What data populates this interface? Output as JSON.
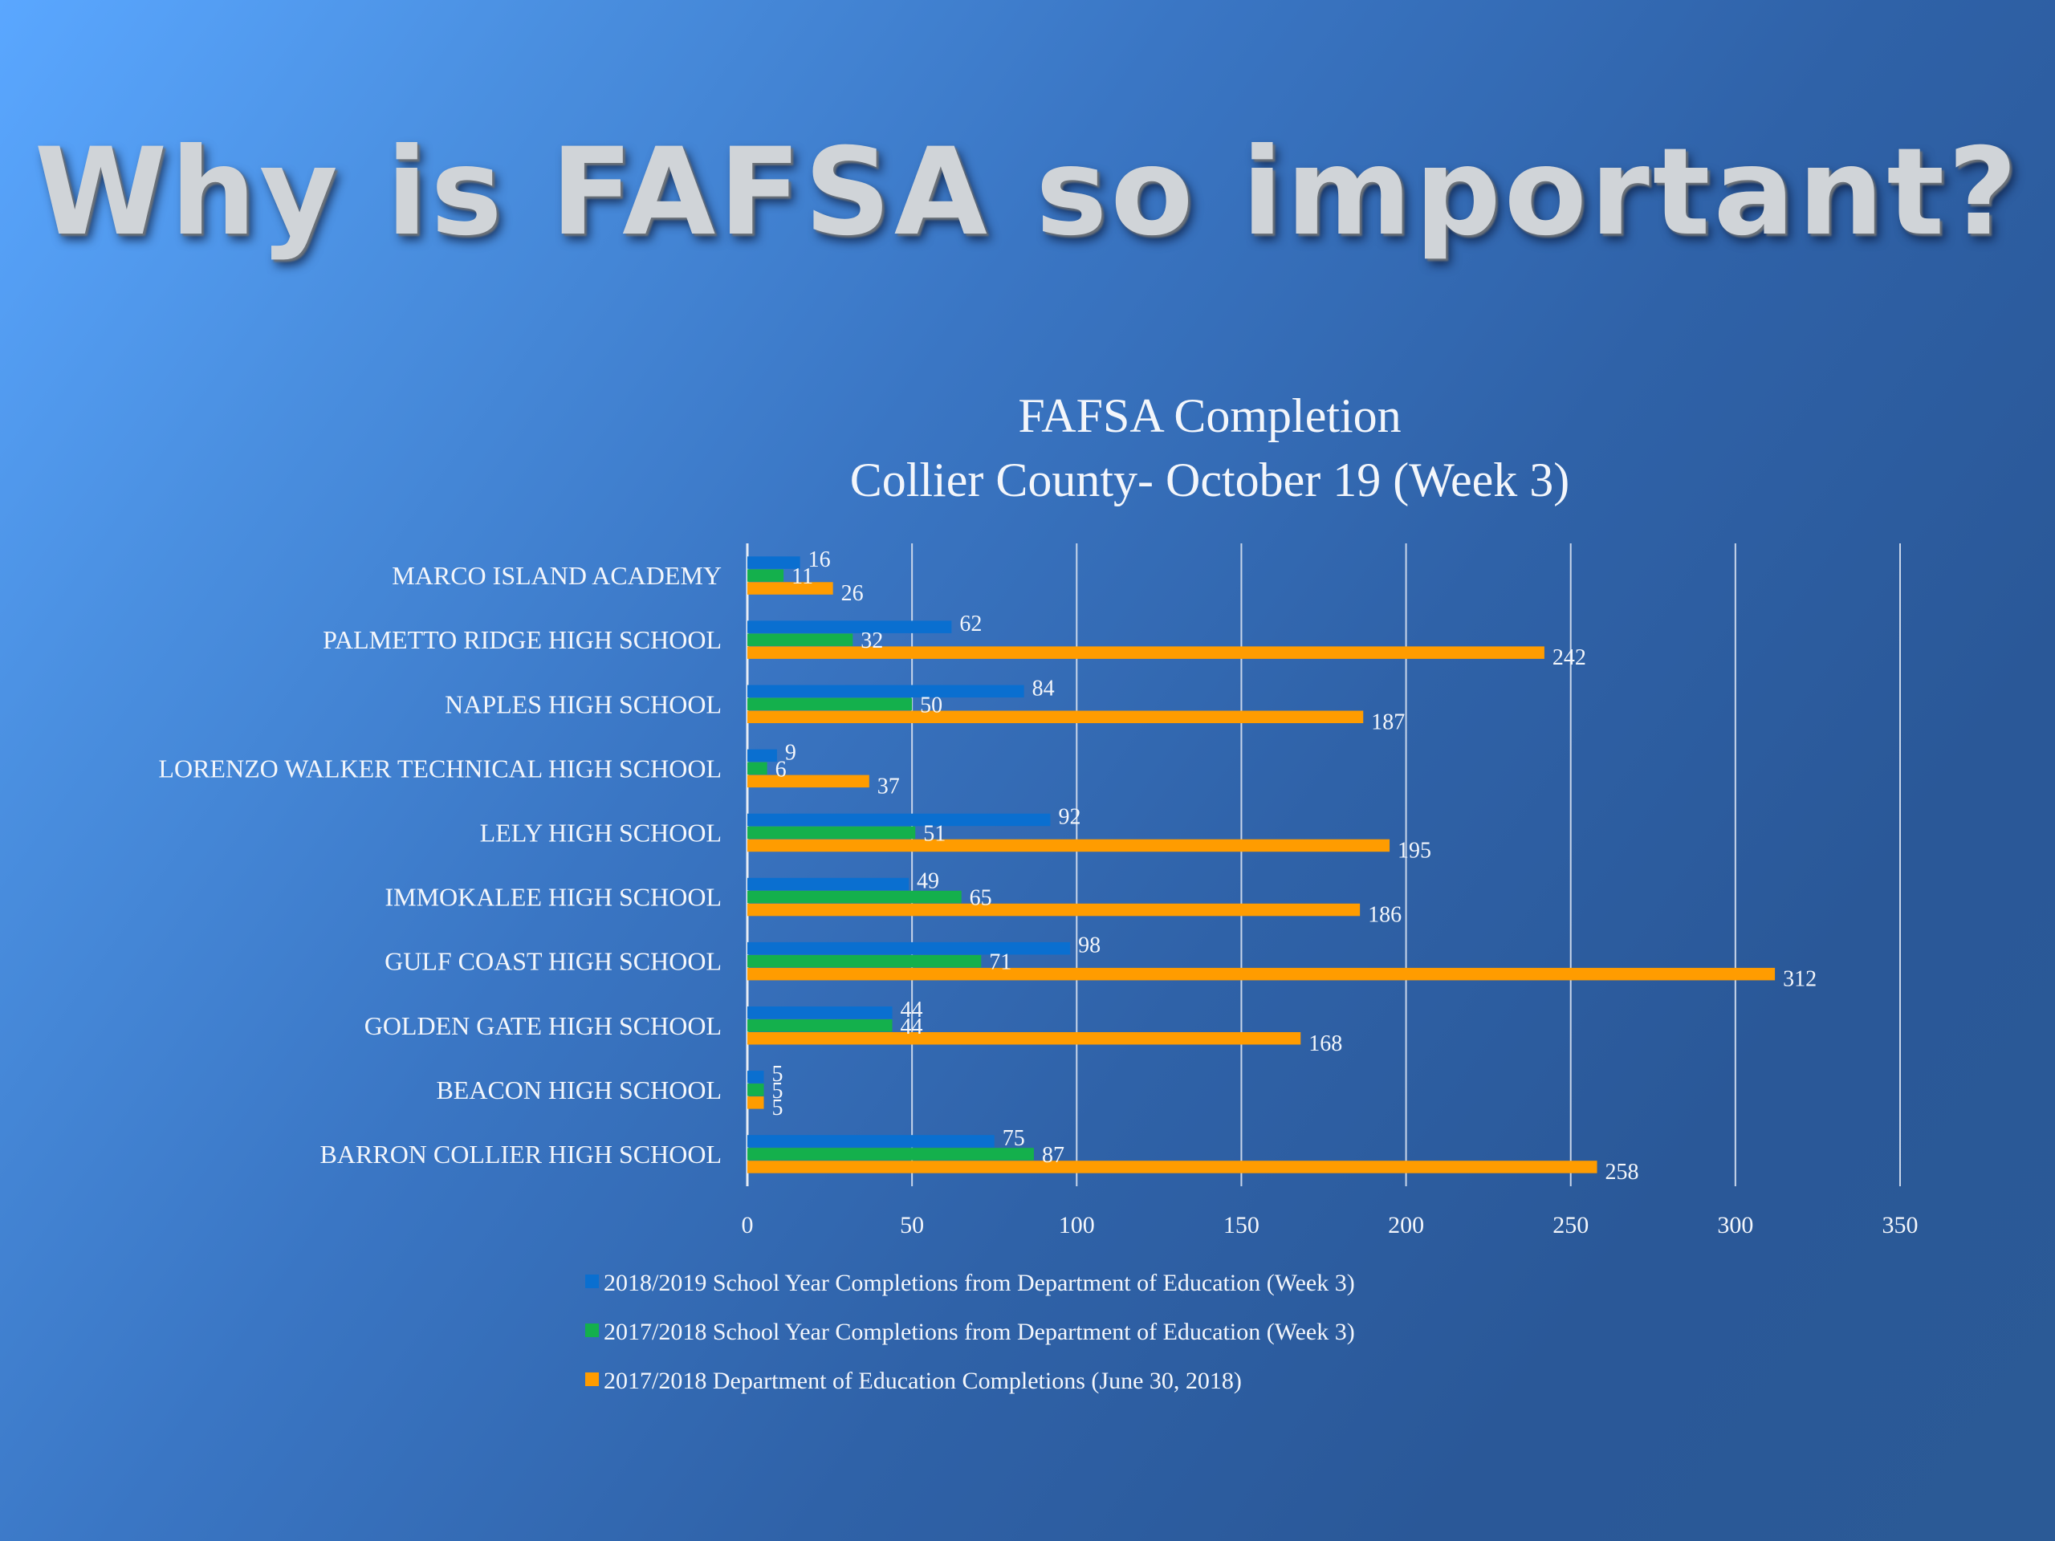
{
  "slide": {
    "title": "Why is FAFSA so important?"
  },
  "chart_data": {
    "type": "bar",
    "orientation": "horizontal",
    "title": [
      "FAFSA Completion",
      "Collier County- October 19 (Week 3)"
    ],
    "categories": [
      "MARCO ISLAND ACADEMY",
      "PALMETTO RIDGE HIGH SCHOOL",
      "NAPLES HIGH SCHOOL",
      "LORENZO WALKER TECHNICAL HIGH SCHOOL",
      "LELY HIGH SCHOOL",
      "IMMOKALEE HIGH SCHOOL",
      "GULF COAST HIGH SCHOOL",
      "GOLDEN GATE HIGH SCHOOL",
      "BEACON HIGH SCHOOL",
      "BARRON COLLIER HIGH SCHOOL"
    ],
    "series": [
      {
        "name": "2018/2019 School Year Completions from Department of Education (Week 3)",
        "color": "#0a6fd0",
        "values": [
          16,
          62,
          84,
          9,
          92,
          49,
          98,
          44,
          5,
          75
        ]
      },
      {
        "name": "2017/2018 School Year Completions from Department of Education (Week 3)",
        "color": "#14b04c",
        "values": [
          11,
          32,
          50,
          6,
          51,
          65,
          71,
          44,
          5,
          87
        ]
      },
      {
        "name": "2017/2018 Department of Education Completions (June 30, 2018)",
        "color": "#ff9c00",
        "values": [
          26,
          242,
          187,
          37,
          195,
          186,
          312,
          168,
          5,
          258
        ]
      }
    ],
    "x_ticks": [
      "0",
      "50",
      "100",
      "150",
      "200",
      "250",
      "300",
      "350"
    ],
    "xlim": [
      0,
      350
    ],
    "grid": true,
    "legend_position": "bottom",
    "data_labels": true
  }
}
